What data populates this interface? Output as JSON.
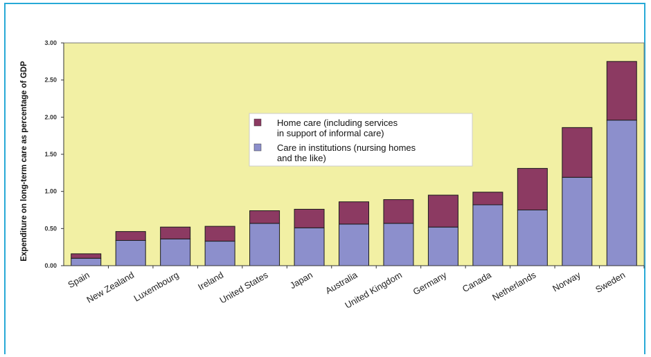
{
  "chart_data": {
    "type": "bar",
    "stacked": true,
    "title": "",
    "xlabel": "",
    "ylabel": "Expenditure on long-term care as percentage of GDP",
    "ylim": [
      0,
      3.0
    ],
    "yticks": [
      "0.00",
      "0.50",
      "1.00",
      "1.50",
      "2.00",
      "2.50",
      "3.00"
    ],
    "ytick_values": [
      0,
      0.5,
      1.0,
      1.5,
      2.0,
      2.5,
      3.0
    ],
    "grid": false,
    "legend_position": "center",
    "categories": [
      "Spain",
      "New Zealand",
      "Luxembourg",
      "Ireland",
      "United States",
      "Japan",
      "Australia",
      "United Kingdom",
      "Germany",
      "Canada",
      "Netherlands",
      "Norway",
      "Sweden"
    ],
    "series": [
      {
        "name": "Care in institutions (nursing homes and the like)",
        "name_lines": [
          "Care in institutions (nursing homes",
          "and the like)"
        ],
        "color": "#8c8fcc",
        "values": [
          0.1,
          0.34,
          0.36,
          0.33,
          0.57,
          0.51,
          0.56,
          0.57,
          0.52,
          0.82,
          0.75,
          1.19,
          1.96
        ]
      },
      {
        "name": "Home care (including services in support of informal care)",
        "name_lines": [
          "Home care (including services",
          "in support of informal care)"
        ],
        "color": "#8c3a62",
        "values": [
          0.06,
          0.12,
          0.16,
          0.2,
          0.17,
          0.25,
          0.3,
          0.32,
          0.43,
          0.17,
          0.56,
          0.67,
          0.79
        ]
      }
    ]
  },
  "colors": {
    "plot_background": "#f2f0a4",
    "frame_border": "#27a9d6"
  }
}
